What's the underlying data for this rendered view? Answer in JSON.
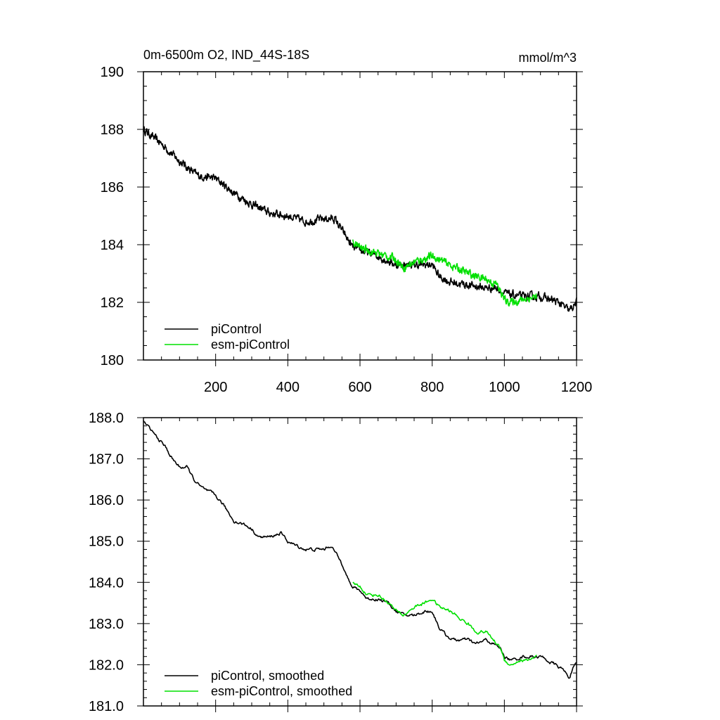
{
  "chart_data": [
    {
      "type": "line",
      "title": "0m-6500m O2, IND_44S-18S",
      "units": "mmol/m^3",
      "xlabel": "",
      "ylabel": "",
      "xlim": [
        0,
        1200
      ],
      "ylim": [
        180,
        190
      ],
      "xticks": [
        200,
        400,
        600,
        800,
        1000,
        1200
      ],
      "xtick_labels": [
        "200",
        "400",
        "600",
        "800",
        "1000",
        "1200"
      ],
      "yticks": [
        180,
        182,
        184,
        186,
        188,
        190
      ],
      "ytick_labels": [
        "180",
        "182",
        "184",
        "186",
        "188",
        "190"
      ],
      "legend_position": "bottom-left",
      "series": [
        {
          "name": "piControl",
          "color": "#000000",
          "anchors": [
            [
              0,
              188.0
            ],
            [
              50,
              187.5
            ],
            [
              100,
              186.9
            ],
            [
              150,
              186.4
            ],
            [
              200,
              186.3
            ],
            [
              250,
              185.8
            ],
            [
              300,
              185.4
            ],
            [
              350,
              185.1
            ],
            [
              400,
              185.0
            ],
            [
              450,
              184.8
            ],
            [
              500,
              184.9
            ],
            [
              530,
              184.9
            ],
            [
              560,
              184.3
            ],
            [
              580,
              183.9
            ],
            [
              650,
              183.6
            ],
            [
              700,
              183.3
            ],
            [
              750,
              183.3
            ],
            [
              800,
              183.3
            ],
            [
              820,
              182.9
            ],
            [
              850,
              182.7
            ],
            [
              900,
              182.6
            ],
            [
              950,
              182.5
            ],
            [
              980,
              182.5
            ],
            [
              1000,
              182.3
            ],
            [
              1050,
              182.2
            ],
            [
              1100,
              182.2
            ],
            [
              1150,
              182.0
            ],
            [
              1180,
              181.7
            ],
            [
              1200,
              182.0
            ]
          ]
        },
        {
          "name": "esm-piControl",
          "color": "#00e000",
          "anchors": [
            [
              580,
              184.1
            ],
            [
              600,
              183.9
            ],
            [
              650,
              183.7
            ],
            [
              700,
              183.5
            ],
            [
              720,
              183.2
            ],
            [
              750,
              183.4
            ],
            [
              800,
              183.6
            ],
            [
              850,
              183.3
            ],
            [
              900,
              183.0
            ],
            [
              950,
              182.8
            ],
            [
              980,
              182.6
            ],
            [
              1000,
              182.1
            ],
            [
              1020,
              182.0
            ],
            [
              1050,
              182.1
            ],
            [
              1090,
              182.2
            ]
          ]
        }
      ]
    },
    {
      "type": "line",
      "title": "",
      "xlabel": "",
      "ylabel": "",
      "xlim": [
        0,
        1200
      ],
      "ylim": [
        181.0,
        188.0
      ],
      "xticks": [
        200,
        400,
        600,
        800,
        1000,
        1200
      ],
      "yticks": [
        181.0,
        182.0,
        183.0,
        184.0,
        185.0,
        186.0,
        187.0,
        188.0
      ],
      "ytick_labels": [
        "181.0",
        "182.0",
        "183.0",
        "184.0",
        "185.0",
        "186.0",
        "187.0",
        "188.0"
      ],
      "legend_position": "bottom-left",
      "series": [
        {
          "name": "piControl, smoothed",
          "color": "#000000",
          "anchors": [
            [
              0,
              187.9
            ],
            [
              20,
              187.7
            ],
            [
              40,
              187.5
            ],
            [
              60,
              187.3
            ],
            [
              80,
              187.0
            ],
            [
              100,
              186.8
            ],
            [
              120,
              186.8
            ],
            [
              140,
              186.5
            ],
            [
              160,
              186.3
            ],
            [
              180,
              186.2
            ],
            [
              200,
              186.1
            ],
            [
              220,
              185.9
            ],
            [
              250,
              185.5
            ],
            [
              280,
              185.4
            ],
            [
              300,
              185.3
            ],
            [
              320,
              185.1
            ],
            [
              350,
              185.1
            ],
            [
              380,
              185.2
            ],
            [
              400,
              185.0
            ],
            [
              420,
              184.9
            ],
            [
              450,
              184.8
            ],
            [
              480,
              184.8
            ],
            [
              500,
              184.8
            ],
            [
              520,
              184.9
            ],
            [
              540,
              184.6
            ],
            [
              560,
              184.3
            ],
            [
              575,
              183.9
            ],
            [
              600,
              183.8
            ],
            [
              620,
              183.6
            ],
            [
              650,
              183.6
            ],
            [
              680,
              183.5
            ],
            [
              700,
              183.3
            ],
            [
              720,
              183.2
            ],
            [
              750,
              183.2
            ],
            [
              780,
              183.3
            ],
            [
              800,
              183.3
            ],
            [
              820,
              182.9
            ],
            [
              840,
              182.7
            ],
            [
              860,
              182.6
            ],
            [
              880,
              182.6
            ],
            [
              900,
              182.6
            ],
            [
              920,
              182.5
            ],
            [
              950,
              182.6
            ],
            [
              970,
              182.5
            ],
            [
              990,
              182.4
            ],
            [
              1000,
              182.2
            ],
            [
              1020,
              182.1
            ],
            [
              1050,
              182.2
            ],
            [
              1080,
              182.2
            ],
            [
              1100,
              182.2
            ],
            [
              1120,
              182.1
            ],
            [
              1140,
              182.0
            ],
            [
              1160,
              181.9
            ],
            [
              1180,
              181.7
            ],
            [
              1190,
              181.9
            ],
            [
              1200,
              182.0
            ]
          ]
        },
        {
          "name": "esm-piControl, smoothed",
          "color": "#00e000",
          "anchors": [
            [
              580,
              184.0
            ],
            [
              600,
              183.9
            ],
            [
              620,
              183.7
            ],
            [
              650,
              183.7
            ],
            [
              680,
              183.5
            ],
            [
              700,
              183.3
            ],
            [
              720,
              183.2
            ],
            [
              750,
              183.4
            ],
            [
              780,
              183.5
            ],
            [
              800,
              183.6
            ],
            [
              820,
              183.4
            ],
            [
              850,
              183.3
            ],
            [
              880,
              183.1
            ],
            [
              900,
              183.0
            ],
            [
              920,
              182.8
            ],
            [
              950,
              182.8
            ],
            [
              970,
              182.6
            ],
            [
              990,
              182.4
            ],
            [
              1000,
              182.1
            ],
            [
              1020,
              182.0
            ],
            [
              1040,
              182.1
            ],
            [
              1060,
              182.1
            ],
            [
              1090,
              182.2
            ]
          ]
        }
      ]
    }
  ]
}
